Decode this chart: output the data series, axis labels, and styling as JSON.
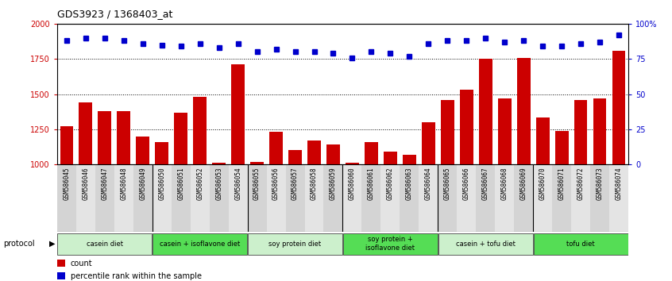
{
  "title": "GDS3923 / 1368403_at",
  "samples": [
    "GSM586045",
    "GSM586046",
    "GSM586047",
    "GSM586048",
    "GSM586049",
    "GSM586050",
    "GSM586051",
    "GSM586052",
    "GSM586053",
    "GSM586054",
    "GSM586055",
    "GSM586056",
    "GSM586057",
    "GSM586058",
    "GSM586059",
    "GSM586060",
    "GSM586061",
    "GSM586062",
    "GSM586063",
    "GSM586064",
    "GSM586065",
    "GSM586066",
    "GSM586067",
    "GSM586068",
    "GSM586069",
    "GSM586070",
    "GSM586071",
    "GSM586072",
    "GSM586073",
    "GSM586074"
  ],
  "counts": [
    1270,
    1440,
    1380,
    1380,
    1200,
    1160,
    1370,
    1480,
    1010,
    1710,
    1020,
    1230,
    1100,
    1170,
    1140,
    1010,
    1160,
    1090,
    1070,
    1300,
    1460,
    1530,
    1750,
    1470,
    1760,
    1335,
    1240,
    1460,
    1470,
    1810
  ],
  "percentile": [
    88,
    90,
    90,
    88,
    86,
    85,
    84,
    86,
    83,
    86,
    80,
    82,
    80,
    80,
    79,
    76,
    80,
    79,
    77,
    86,
    88,
    88,
    90,
    87,
    88,
    84,
    84,
    86,
    87,
    92
  ],
  "protocols": [
    {
      "label": "casein diet",
      "start": 0,
      "end": 5,
      "color": "#ccf0cc"
    },
    {
      "label": "casein + isoflavone diet",
      "start": 5,
      "end": 10,
      "color": "#55dd55"
    },
    {
      "label": "soy protein diet",
      "start": 10,
      "end": 15,
      "color": "#ccf0cc"
    },
    {
      "label": "soy protein +\nisoflavone diet",
      "start": 15,
      "end": 20,
      "color": "#55dd55"
    },
    {
      "label": "casein + tofu diet",
      "start": 20,
      "end": 25,
      "color": "#ccf0cc"
    },
    {
      "label": "tofu diet",
      "start": 25,
      "end": 30,
      "color": "#55dd55"
    }
  ],
  "bar_color": "#cc0000",
  "dot_color": "#0000cc",
  "ylim_left": [
    1000,
    2000
  ],
  "ylim_right": [
    0,
    100
  ],
  "yticks_left": [
    1000,
    1250,
    1500,
    1750,
    2000
  ],
  "yticks_right": [
    0,
    25,
    50,
    75,
    100
  ],
  "ytick_labels_right": [
    "0",
    "25",
    "50",
    "75",
    "100%"
  ],
  "plot_bg": "#ffffff",
  "tick_bg_odd": "#d8d8d8",
  "tick_bg_even": "#e8e8e8"
}
